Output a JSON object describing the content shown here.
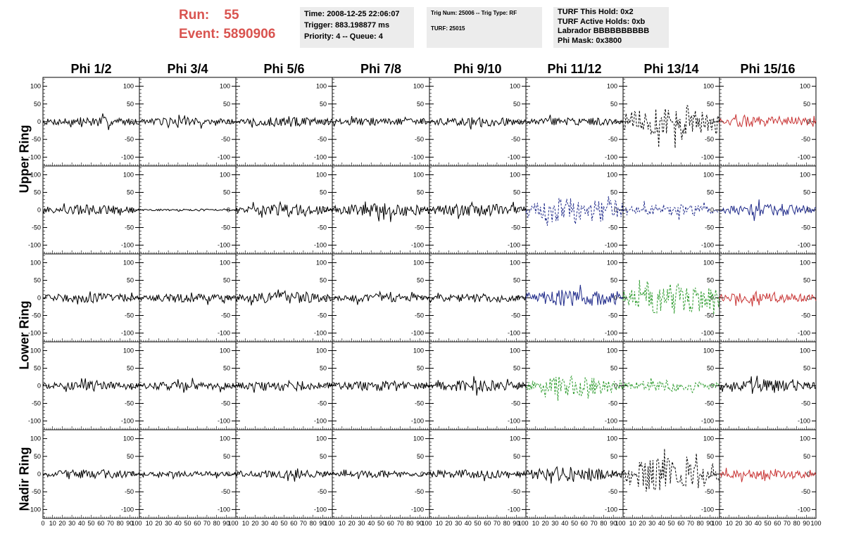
{
  "header": {
    "run_label": "Run:",
    "run_value": "55",
    "event_label": "Event:",
    "event_value": "5890906",
    "box1": [
      "Time: 2008-12-25 22:06:07",
      "Trigger: 883.198877 ms",
      "Priority: 4 -- Queue: 4"
    ],
    "box2": [
      "Trig Num: 25006 -- Trig Type: RF",
      "",
      "TURF: 25015"
    ],
    "box3": [
      "TURF This Hold: 0x2",
      "TURF Active Holds: 0xb",
      "Labrador BBBBBBBBBB",
      "Phi Mask: 0x3800"
    ]
  },
  "colors": {
    "accent_text": "#d9534f",
    "info_bg": "#ececec",
    "trace_black": "#000000",
    "trace_blue": "#1f2a8a",
    "trace_green": "#2a9a2a",
    "trace_red": "#c83232"
  },
  "chart_data": {
    "type": "line",
    "columns": [
      "Phi 1/2",
      "Phi 3/4",
      "Phi 5/6",
      "Phi 7/8",
      "Phi 9/10",
      "Phi 11/12",
      "Phi 13/14",
      "Phi 15/16"
    ],
    "rows": [
      "Upper Ring",
      "Lower Ring",
      "Nadir Ring"
    ],
    "xlim": [
      0,
      100
    ],
    "ylim": [
      -125,
      125
    ],
    "x_tick_labels": [
      "0",
      "10",
      "20",
      "30",
      "40",
      "50",
      "60",
      "70",
      "80",
      "90",
      "100"
    ],
    "y_tick_labels": [
      "100",
      "50",
      "0",
      "-50",
      "-100"
    ],
    "panels": [
      [
        {
          "color": "black",
          "style": "solid",
          "amp": 14
        },
        {
          "color": "black",
          "style": "solid",
          "amp": 12
        },
        {
          "color": "black",
          "style": "solid",
          "amp": 14
        },
        {
          "color": "black",
          "style": "solid",
          "amp": 12
        },
        {
          "color": "black",
          "style": "solid",
          "amp": 13
        },
        {
          "color": "black",
          "style": "solid",
          "amp": 12
        },
        {
          "color": "black",
          "style": "dashed",
          "amp": 40
        },
        {
          "color": "red",
          "style": "solid",
          "amp": 16
        }
      ],
      [
        {
          "color": "black",
          "style": "solid",
          "amp": 15
        },
        {
          "color": "black",
          "style": "solid",
          "amp": 3
        },
        {
          "color": "black",
          "style": "solid",
          "amp": 16
        },
        {
          "color": "black",
          "style": "solid",
          "amp": 20
        },
        {
          "color": "black",
          "style": "solid",
          "amp": 18
        },
        {
          "color": "blue",
          "style": "dashed",
          "amp": 40
        },
        {
          "color": "blue",
          "style": "dashed",
          "amp": 16
        },
        {
          "color": "blue",
          "style": "solid",
          "amp": 18
        }
      ],
      [
        {
          "color": "black",
          "style": "solid",
          "amp": 14
        },
        {
          "color": "black",
          "style": "solid",
          "amp": 12
        },
        {
          "color": "black",
          "style": "solid",
          "amp": 16
        },
        {
          "color": "black",
          "style": "solid",
          "amp": 12
        },
        {
          "color": "black",
          "style": "solid",
          "amp": 13
        },
        {
          "color": "blue",
          "style": "solid",
          "amp": 24
        },
        {
          "color": "green",
          "style": "dashed",
          "amp": 48
        },
        {
          "color": "red",
          "style": "solid",
          "amp": 16
        }
      ],
      [
        {
          "color": "black",
          "style": "solid",
          "amp": 12
        },
        {
          "color": "black",
          "style": "solid",
          "amp": 13
        },
        {
          "color": "black",
          "style": "solid",
          "amp": 15
        },
        {
          "color": "black",
          "style": "solid",
          "amp": 14
        },
        {
          "color": "black",
          "style": "solid",
          "amp": 16
        },
        {
          "color": "green",
          "style": "dashed",
          "amp": 28
        },
        {
          "color": "green",
          "style": "dashed",
          "amp": 16
        },
        {
          "color": "black",
          "style": "solid",
          "amp": 16
        }
      ],
      [
        {
          "color": "black",
          "style": "solid",
          "amp": 13
        },
        {
          "color": "black",
          "style": "solid",
          "amp": 8
        },
        {
          "color": "black",
          "style": "solid",
          "amp": 12
        },
        {
          "color": "black",
          "style": "solid",
          "amp": 10
        },
        {
          "color": "black",
          "style": "solid",
          "amp": 13
        },
        {
          "color": "black",
          "style": "solid",
          "amp": 20
        },
        {
          "color": "black",
          "style": "dashed",
          "amp": 48
        },
        {
          "color": "red",
          "style": "solid",
          "amp": 15
        }
      ]
    ]
  }
}
